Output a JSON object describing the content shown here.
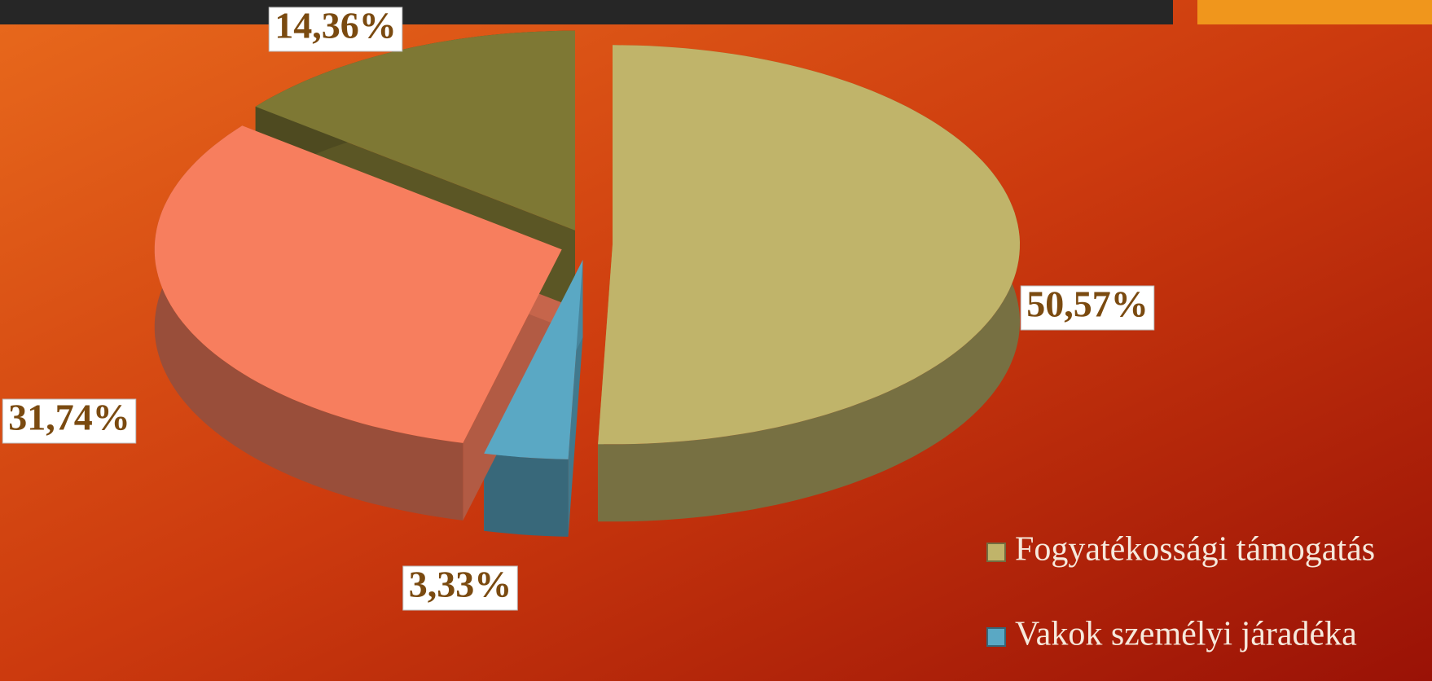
{
  "chart_data": {
    "type": "pie",
    "categories": [
      "Fogyatékossági támogatás",
      "Vakok személyi járadéka",
      null,
      null
    ],
    "values": [
      50.57,
      3.33,
      31.74,
      14.36
    ],
    "value_labels": [
      "50,57%",
      "3,33%",
      "31,74%",
      "14,36%"
    ],
    "colors": [
      "#c0b46a",
      "#5aa8c4",
      "#f77e5e",
      "#7e7834"
    ],
    "legend": "bottom-right"
  }
}
